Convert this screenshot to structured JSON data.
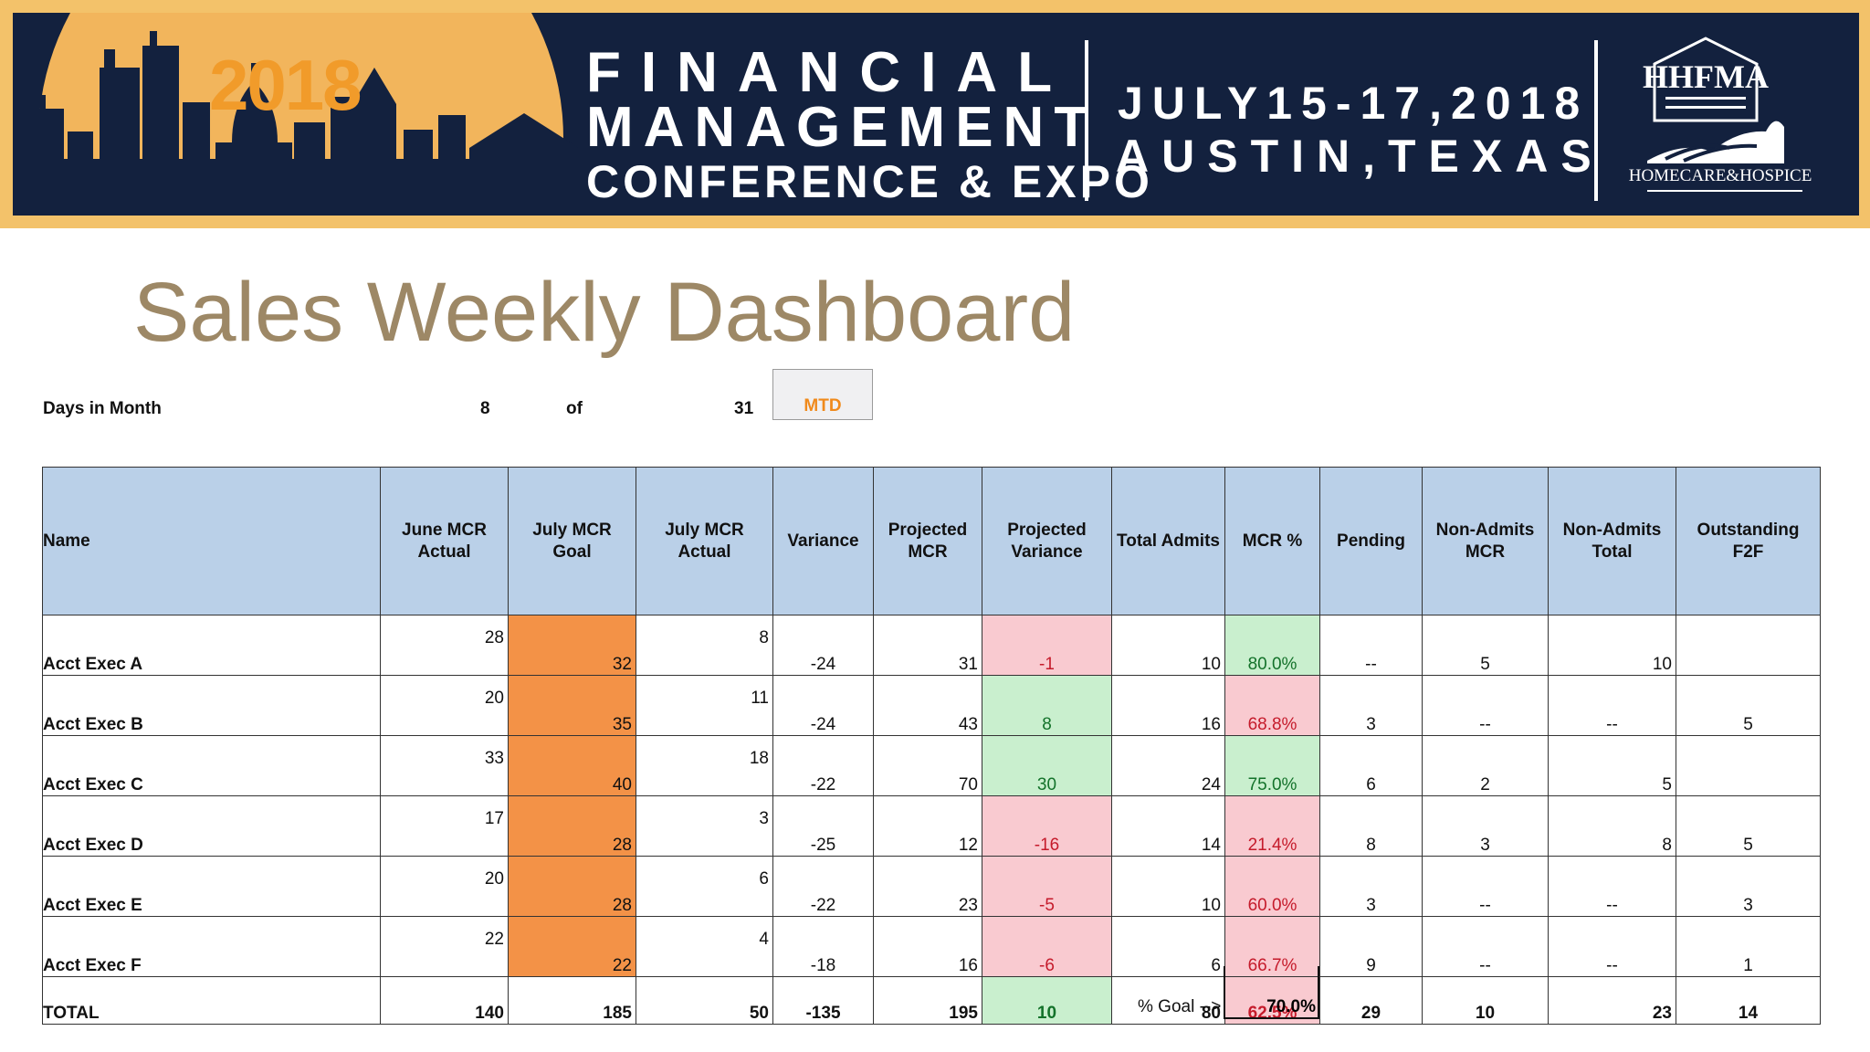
{
  "banner": {
    "year": "2018",
    "line1": "FINANCIAL",
    "line2": "MANAGEMENT",
    "line3": "CONFERENCE & EXPO",
    "line4": "JULY15-17,2018",
    "line5": "AUSTIN,TEXAS",
    "logo_top": "HHFMA",
    "logo_bottom": "HOMECARE&HOSPICE",
    "colors": {
      "navy": "#13213e",
      "gold": "#f3c26a",
      "orange": "#f19b2a"
    }
  },
  "title": "Sales Weekly Dashboard",
  "days": {
    "label": "Days in Month",
    "current": "8",
    "of": "of",
    "total": "31",
    "mtd": "MTD"
  },
  "table": {
    "headers": [
      "Name",
      "June MCR Actual",
      "July MCR Goal",
      "July MCR Actual",
      "Variance",
      "Projected MCR",
      "Projected Variance",
      "Total Admits",
      "MCR %",
      "Pending",
      "Non-Admits MCR",
      "Non-Admits Total",
      "Outstanding F2F"
    ],
    "rows": [
      [
        "Acct Exec A",
        "28",
        "32",
        "8",
        "-24",
        "31",
        "-1",
        "10",
        "80.0%",
        "--",
        "5",
        "10",
        ""
      ],
      [
        "Acct Exec B",
        "20",
        "35",
        "11",
        "-24",
        "43",
        "8",
        "16",
        "68.8%",
        "3",
        "--",
        "--",
        "5"
      ],
      [
        "Acct Exec C",
        "33",
        "40",
        "18",
        "-22",
        "70",
        "30",
        "24",
        "75.0%",
        "6",
        "2",
        "5",
        ""
      ],
      [
        "Acct Exec D",
        "17",
        "28",
        "3",
        "-25",
        "12",
        "-16",
        "14",
        "21.4%",
        "8",
        "3",
        "8",
        "5"
      ],
      [
        "Acct Exec E",
        "20",
        "28",
        "6",
        "-22",
        "23",
        "-5",
        "10",
        "60.0%",
        "3",
        "--",
        "--",
        "3"
      ],
      [
        "Acct Exec F",
        "22",
        "22",
        "4",
        "-18",
        "16",
        "-6",
        "6",
        "66.7%",
        "9",
        "--",
        "--",
        "1"
      ]
    ],
    "total": [
      "TOTAL",
      "140",
      "185",
      "50",
      "-135",
      "195",
      "10",
      "80",
      "62.5%",
      "29",
      "10",
      "23",
      "14"
    ],
    "status": {
      "projected_variance": [
        "bad",
        "good",
        "good",
        "bad",
        "bad",
        "bad"
      ],
      "projected_variance_total": "good",
      "mcr_pct": [
        "good",
        "bad",
        "good",
        "bad",
        "bad",
        "bad"
      ],
      "mcr_pct_total": "bad"
    },
    "colors": {
      "header_bg": "#bad0e8",
      "goal_bg": "#f39247",
      "bad_bg": "#f9cad0",
      "good_bg": "#c9efce"
    }
  },
  "goal": {
    "label": "% Goal -->",
    "value": "70.0%"
  }
}
